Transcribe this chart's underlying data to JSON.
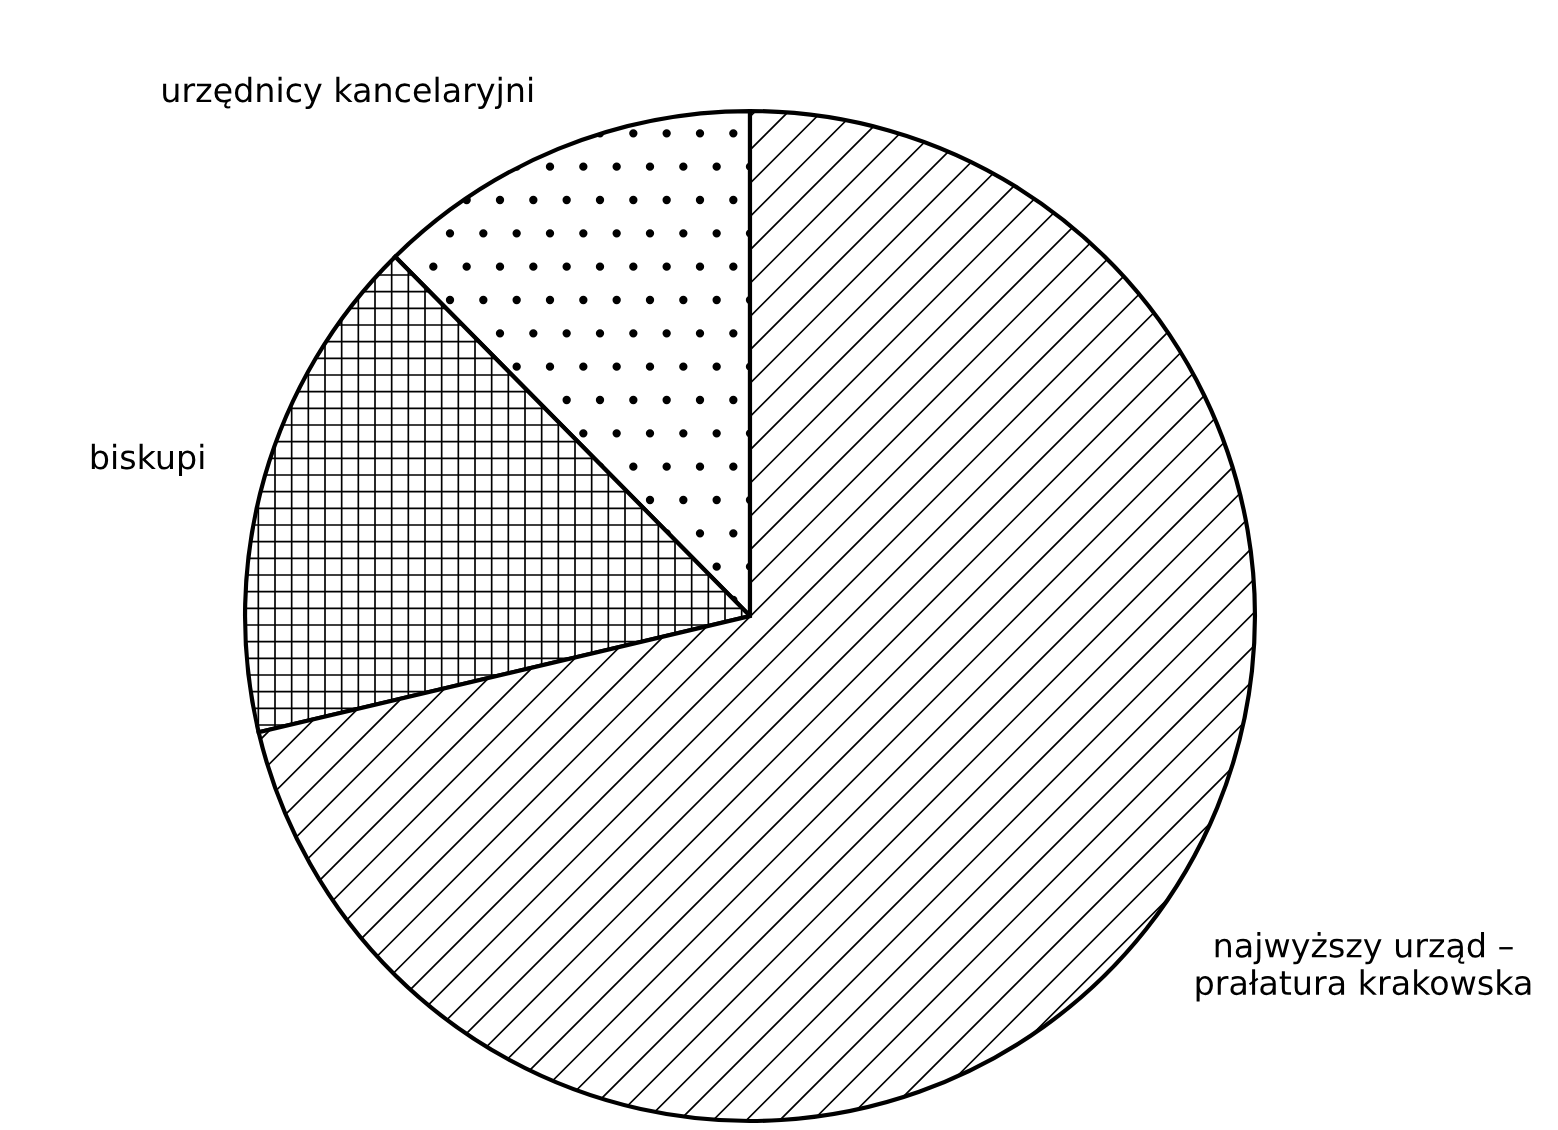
{
  "chart_data": {
    "type": "pie",
    "categories": [
      "urzędnicy kancelaryjni",
      "biskupi",
      "najwyższy urząd –\nprałatura krakowska"
    ],
    "values": [
      12.4,
      16.3,
      71.3
    ],
    "colors": [
      "#000000",
      "#000000",
      "#000000"
    ]
  }
}
